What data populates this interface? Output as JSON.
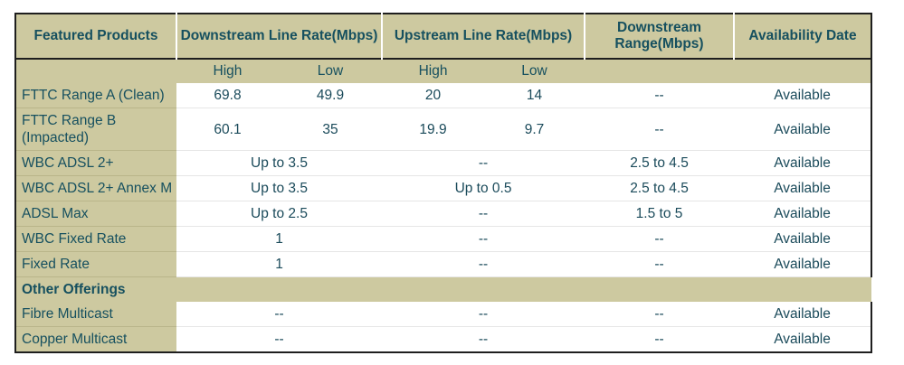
{
  "headers": {
    "featured": "Featured Products",
    "downstream": "Downstream Line Rate(Mbps)",
    "upstream": "Upstream Line Rate(Mbps)",
    "range": "Downstream Range(Mbps)",
    "availability": "Availability Date"
  },
  "subheaders": {
    "high": "High",
    "low": "Low"
  },
  "rows": [
    {
      "name": "FTTC Range A (Clean)",
      "down_high": "69.8",
      "down_low": "49.9",
      "up_high": "20",
      "up_low": "14",
      "range": "--",
      "avail": "Available"
    },
    {
      "name": "FTTC Range B (Impacted)",
      "down_high": "60.1",
      "down_low": "35",
      "up_high": "19.9",
      "up_low": "9.7",
      "range": "--",
      "avail": "Available"
    },
    {
      "name": "WBC ADSL 2+",
      "down": "Up to 3.5",
      "up": "--",
      "range": "2.5 to 4.5",
      "avail": "Available"
    },
    {
      "name": "WBC ADSL 2+ Annex M",
      "down": "Up to 3.5",
      "up": "Up to 0.5",
      "range": "2.5 to 4.5",
      "avail": "Available"
    },
    {
      "name": "ADSL Max",
      "down": "Up to 2.5",
      "up": "--",
      "range": "1.5 to 5",
      "avail": "Available"
    },
    {
      "name": "WBC Fixed Rate",
      "down": "1",
      "up": "--",
      "range": "--",
      "avail": "Available"
    },
    {
      "name": "Fixed Rate",
      "down": "1",
      "up": "--",
      "range": "--",
      "avail": "Available"
    }
  ],
  "section": "Other Offerings",
  "other_rows": [
    {
      "name": "Fibre Multicast",
      "down": "--",
      "up": "--",
      "range": "--",
      "avail": "Available"
    },
    {
      "name": "Copper Multicast",
      "down": "--",
      "up": "--",
      "range": "--",
      "avail": "Available"
    }
  ]
}
